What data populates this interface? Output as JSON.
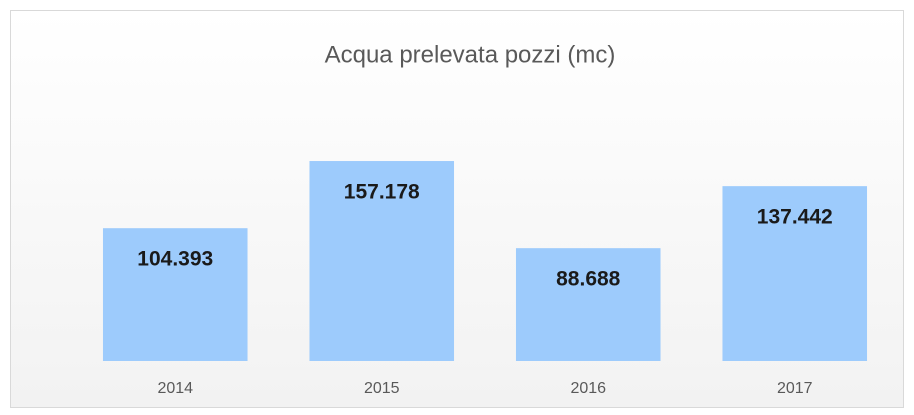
{
  "chart_data": {
    "type": "bar",
    "title": "Acqua prelevata pozzi (mc)",
    "categories": [
      "2014",
      "2015",
      "2016",
      "2017"
    ],
    "values": [
      104393,
      157178,
      88688,
      137442
    ],
    "value_labels": [
      "104.393",
      "157.178",
      "88.688",
      "137.442"
    ],
    "color": "#9dcbfc",
    "ylim": [
      0,
      180000
    ]
  }
}
